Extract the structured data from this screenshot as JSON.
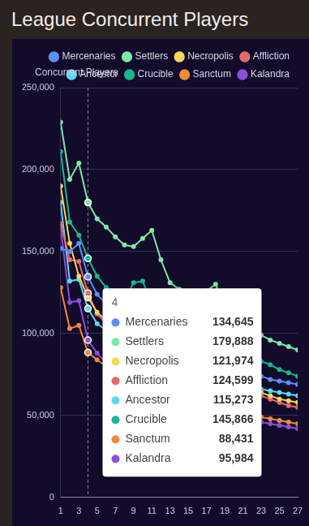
{
  "chart_data": {
    "type": "line",
    "title": "League Concurrent Players",
    "ylabel": "Concurrent Players",
    "x": [
      1,
      2,
      3,
      4,
      5,
      6,
      7,
      8,
      9,
      10,
      11,
      12,
      13,
      14,
      15,
      16,
      17,
      18,
      19,
      20,
      21,
      22,
      23,
      24,
      25,
      26,
      27
    ],
    "xlim": [
      1,
      27
    ],
    "xticks": [
      1,
      3,
      5,
      7,
      9,
      11,
      13,
      15,
      17,
      19,
      21,
      23,
      25,
      27
    ],
    "ylim": [
      0,
      250000
    ],
    "yticks": [
      {
        "value": 0,
        "label": "0"
      },
      {
        "value": 50000,
        "label": "50,000"
      },
      {
        "value": 100000,
        "label": "100,000"
      },
      {
        "value": 150000,
        "label": "150,000"
      },
      {
        "value": 200000,
        "label": "200,000"
      },
      {
        "value": 250000,
        "label": "250,000"
      }
    ],
    "grid": true,
    "legend": "top",
    "marker": "circle",
    "series": [
      {
        "name": "Mercenaries",
        "color": "#5b8ff9",
        "values": [
          152000,
          150000,
          155000,
          134645,
          124000,
          118000,
          113000,
          109000,
          106000,
          104000,
          101000,
          98000,
          95000,
          92000,
          90000,
          88000,
          86000,
          84000,
          82000,
          80000,
          78000,
          76000,
          74000,
          72000,
          71000,
          70000,
          69000
        ]
      },
      {
        "name": "Settlers",
        "color": "#7ee8a6",
        "values": [
          229000,
          194000,
          204000,
          179888,
          170000,
          165000,
          159000,
          154000,
          153000,
          158000,
          163000,
          145000,
          131000,
          127000,
          124000,
          122000,
          126000,
          130000,
          117000,
          110000,
          106000,
          102000,
          99000,
          96000,
          94000,
          92000,
          90000
        ]
      },
      {
        "name": "Necropolis",
        "color": "#f7d75a",
        "values": [
          190000,
          155000,
          135000,
          121974,
          113000,
          108000,
          103000,
          99000,
          96000,
          94000,
          91000,
          88000,
          85000,
          82000,
          80000,
          78000,
          76000,
          74000,
          72000,
          70000,
          68000,
          66000,
          64000,
          62000,
          60000,
          59000,
          58000
        ]
      },
      {
        "name": "Affliction",
        "color": "#e8696b",
        "values": [
          167000,
          145000,
          144000,
          124599,
          112000,
          106000,
          101000,
          97000,
          94000,
          92000,
          89000,
          86000,
          83000,
          80000,
          78000,
          76000,
          74000,
          72000,
          70000,
          68000,
          66000,
          64000,
          62000,
          60000,
          58000,
          56000,
          55000
        ]
      },
      {
        "name": "Ancestor",
        "color": "#5ad8ef",
        "values": [
          180000,
          132000,
          133000,
          115273,
          106000,
          102000,
          98000,
          95000,
          92000,
          90000,
          88000,
          85000,
          82000,
          80000,
          78000,
          76000,
          74000,
          72000,
          70000,
          69000,
          68000,
          67000,
          66000,
          65000,
          64000,
          63000,
          62000
        ]
      },
      {
        "name": "Crucible",
        "color": "#17b890",
        "values": [
          211000,
          168000,
          160000,
          145866,
          135000,
          128000,
          122000,
          120000,
          131000,
          132000,
          118000,
          115000,
          110000,
          107000,
          104000,
          102000,
          100000,
          97000,
          94000,
          91000,
          88000,
          86000,
          83000,
          81000,
          78000,
          76000,
          74000
        ]
      },
      {
        "name": "Sanctum",
        "color": "#f08a3c",
        "values": [
          128000,
          103000,
          105000,
          88431,
          84000,
          80000,
          77000,
          74000,
          71000,
          69000,
          67000,
          65000,
          63000,
          61000,
          59000,
          57000,
          55000,
          54000,
          53000,
          52000,
          51000,
          50000,
          49000,
          48000,
          47000,
          46000,
          45000
        ]
      },
      {
        "name": "Kalandra",
        "color": "#8e4fd9",
        "values": [
          165000,
          119000,
          120000,
          95984,
          88000,
          82000,
          78000,
          74000,
          71000,
          68000,
          66000,
          64000,
          62000,
          60000,
          58000,
          56000,
          54000,
          52000,
          50000,
          49000,
          48000,
          47000,
          46000,
          45000,
          44000,
          43000,
          42000
        ]
      }
    ],
    "tooltip": {
      "x": 4,
      "title": "4",
      "value_labels": [
        "134,645",
        "179,888",
        "121,974",
        "124,599",
        "115,273",
        "145,866",
        "88,431",
        "95,984"
      ]
    }
  }
}
